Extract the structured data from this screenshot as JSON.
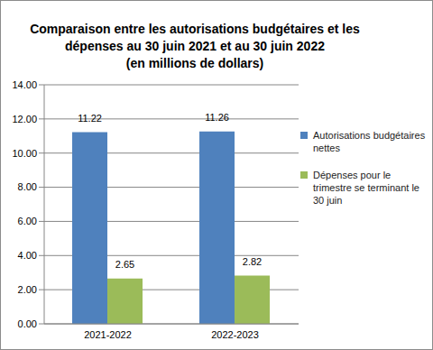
{
  "chart_data": {
    "type": "bar",
    "title": "Comparaison entre les autorisations budgétaires et les\ndépenses au 30 juin 2021 et au 30 juin 2022\n(en millions de dollars)",
    "categories": [
      "2021-2022",
      "2022-2023"
    ],
    "series": [
      {
        "name": "Autorisations budgétaires nettes",
        "color": "#4f81bd",
        "values": [
          11.22,
          11.26
        ]
      },
      {
        "name": "Dépenses pour le trimestre se terminant le 30 juin",
        "color": "#9bbb59",
        "values": [
          2.65,
          2.82
        ]
      }
    ],
    "ylim": [
      0,
      14
    ],
    "yticks": [
      {
        "value": 0,
        "label": "0.00"
      },
      {
        "value": 2,
        "label": "2.00"
      },
      {
        "value": 4,
        "label": "4.00"
      },
      {
        "value": 6,
        "label": "6.00"
      },
      {
        "value": 8,
        "label": "8.00"
      },
      {
        "value": 10,
        "label": "10.00"
      },
      {
        "value": 12,
        "label": "12.00"
      },
      {
        "value": 14,
        "label": "14.00"
      }
    ],
    "grid": true,
    "legend": "right",
    "data_labels": true
  }
}
